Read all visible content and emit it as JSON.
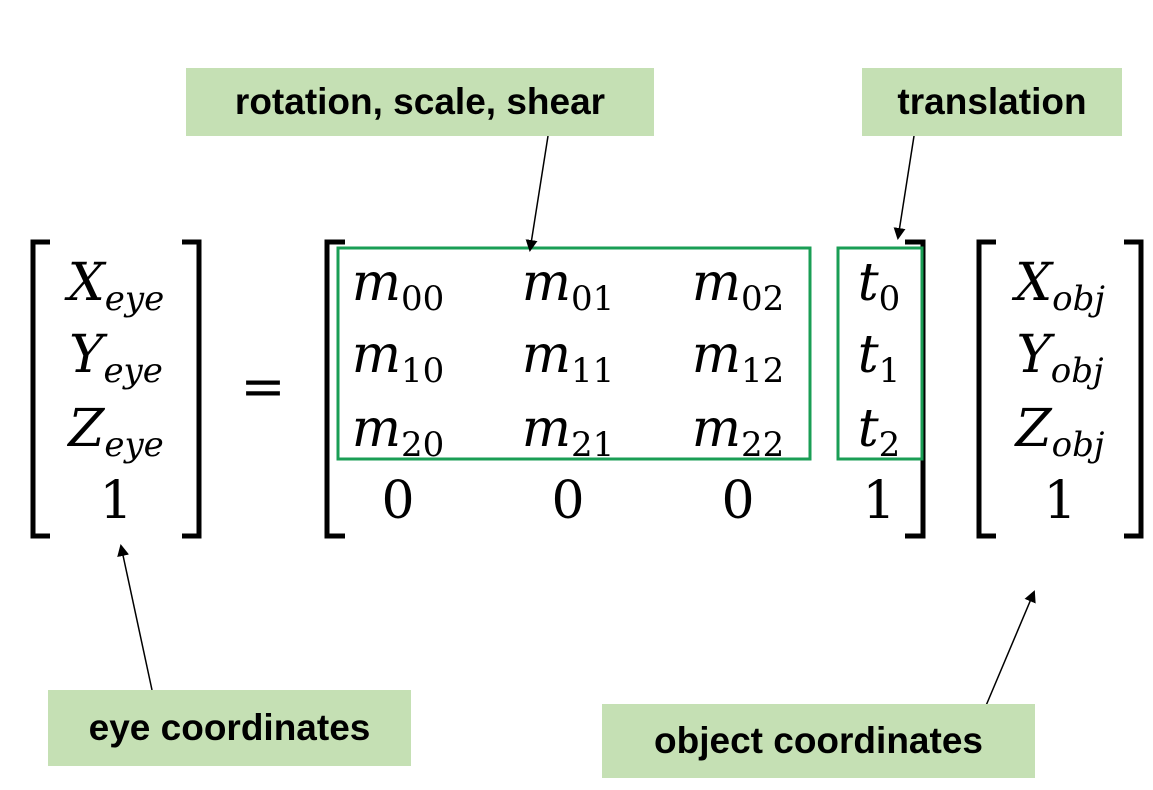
{
  "labels": {
    "rotation": "rotation, scale, shear",
    "translation": "translation",
    "eye": "eye coordinates",
    "object": "object coordinates"
  },
  "equals": "=",
  "eye_vector": [
    {
      "base": "X",
      "sub": "eye"
    },
    {
      "base": "Y",
      "sub": "eye"
    },
    {
      "base": "Z",
      "sub": "eye"
    },
    {
      "base": "1",
      "sub": ""
    }
  ],
  "matrix": [
    [
      {
        "base": "m",
        "sub": "00"
      },
      {
        "base": "m",
        "sub": "01"
      },
      {
        "base": "m",
        "sub": "02"
      },
      {
        "base": "t",
        "sub": "0"
      }
    ],
    [
      {
        "base": "m",
        "sub": "10"
      },
      {
        "base": "m",
        "sub": "11"
      },
      {
        "base": "m",
        "sub": "12"
      },
      {
        "base": "t",
        "sub": "1"
      }
    ],
    [
      {
        "base": "m",
        "sub": "20"
      },
      {
        "base": "m",
        "sub": "21"
      },
      {
        "base": "m",
        "sub": "22"
      },
      {
        "base": "t",
        "sub": "2"
      }
    ],
    [
      {
        "base": "0",
        "sub": ""
      },
      {
        "base": "0",
        "sub": ""
      },
      {
        "base": "0",
        "sub": ""
      },
      {
        "base": "1",
        "sub": ""
      }
    ]
  ],
  "obj_vector": [
    {
      "base": "X",
      "sub": "obj"
    },
    {
      "base": "Y",
      "sub": "obj"
    },
    {
      "base": "Z",
      "sub": "obj"
    },
    {
      "base": "1",
      "sub": ""
    }
  ],
  "colors": {
    "label_bg": "#c5e0b4",
    "highlight": "#1a9e55",
    "ink": "#000000"
  }
}
